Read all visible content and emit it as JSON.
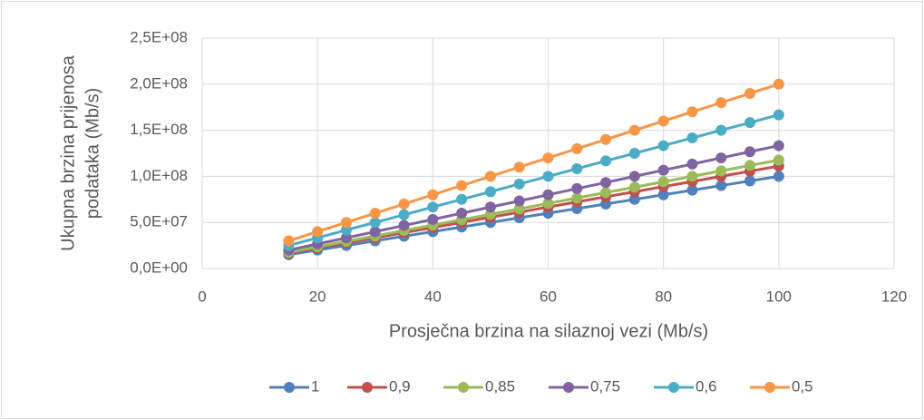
{
  "chart_data": {
    "type": "line",
    "xlabel": "Prosječna brzina na silaznoj vezi (Mb/s)",
    "ylabel": [
      "Ukupna brzina prijenosa",
      "podataka (Mb/s)"
    ],
    "x": [
      15,
      20,
      25,
      30,
      35,
      40,
      45,
      50,
      55,
      60,
      65,
      70,
      75,
      80,
      85,
      90,
      95,
      100
    ],
    "series": [
      {
        "name": "1",
        "color": "#4f81bd",
        "values": [
          15000000,
          20000000,
          25000000,
          30000000,
          35000000,
          40000000,
          45000000,
          50000000,
          55000000,
          60000000,
          65000000,
          70000000,
          75000000,
          80000000,
          85000000,
          90000000,
          95000000,
          100000000
        ]
      },
      {
        "name": "0,9",
        "color": "#c0504d",
        "values": [
          16700000,
          22200000,
          27800000,
          33300000,
          38900000,
          44400000,
          50000000,
          55600000,
          61100000,
          66700000,
          72200000,
          77800000,
          83300000,
          88900000,
          94400000,
          100000000,
          105600000,
          111100000
        ]
      },
      {
        "name": "0,85",
        "color": "#9bbb59",
        "values": [
          17600000,
          23500000,
          29400000,
          35300000,
          41200000,
          47100000,
          52900000,
          58800000,
          64700000,
          70600000,
          76500000,
          82400000,
          88200000,
          94100000,
          100000000,
          105900000,
          111800000,
          117600000
        ]
      },
      {
        "name": "0,75",
        "color": "#8064a2",
        "values": [
          20000000,
          26700000,
          33300000,
          40000000,
          46700000,
          53300000,
          60000000,
          66700000,
          73300000,
          80000000,
          86700000,
          93300000,
          100000000,
          106700000,
          113300000,
          120000000,
          126700000,
          133300000
        ]
      },
      {
        "name": "0,6",
        "color": "#4bacc6",
        "values": [
          25000000,
          33300000,
          41700000,
          50000000,
          58300000,
          66700000,
          75000000,
          83300000,
          91700000,
          100000000,
          108300000,
          116700000,
          125000000,
          133300000,
          141700000,
          150000000,
          158300000,
          166700000
        ]
      },
      {
        "name": "0,5",
        "color": "#f79646",
        "values": [
          30000000,
          40000000,
          50000000,
          60000000,
          70000000,
          80000000,
          90000000,
          100000000,
          110000000,
          120000000,
          130000000,
          140000000,
          150000000,
          160000000,
          170000000,
          180000000,
          190000000,
          200000000
        ]
      }
    ],
    "xlim": [
      0,
      120
    ],
    "xticks": [
      0,
      20,
      40,
      60,
      80,
      100,
      120
    ],
    "ylim": [
      0,
      250000000
    ],
    "yticks": [
      {
        "value": 0,
        "label": "0,0E+00"
      },
      {
        "value": 50000000,
        "label": "5,0E+07"
      },
      {
        "value": 100000000,
        "label": "1,0E+08"
      },
      {
        "value": 150000000,
        "label": "1,5E+08"
      },
      {
        "value": 200000000,
        "label": "2,0E+08"
      },
      {
        "value": 250000000,
        "label": "2,5E+08"
      }
    ],
    "grid": true,
    "legend": "bottom"
  }
}
